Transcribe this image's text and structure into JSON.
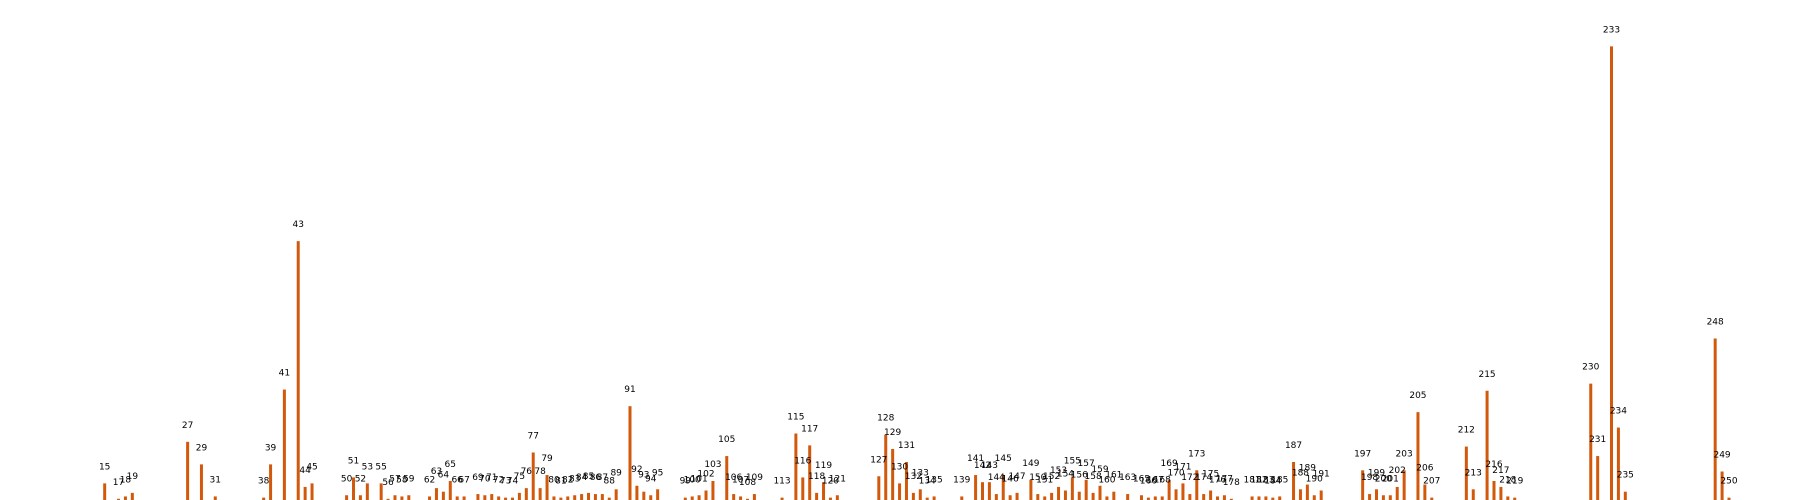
{
  "chart_data": {
    "type": "bar",
    "title": "",
    "xlabel": "",
    "ylabel": "",
    "bar_color": "#d2590c",
    "label_color": "#000000",
    "background": "#ffffff",
    "x_range": [
      0,
      250
    ],
    "ylim": [
      0,
      2000
    ],
    "bars": [
      {
        "x": 15,
        "y": 70
      },
      {
        "x": 17,
        "y": 5
      },
      {
        "x": 18,
        "y": 15
      },
      {
        "x": 19,
        "y": 30
      },
      {
        "x": 27,
        "y": 245
      },
      {
        "x": 29,
        "y": 150
      },
      {
        "x": 31,
        "y": 15
      },
      {
        "x": 38,
        "y": 10
      },
      {
        "x": 39,
        "y": 150
      },
      {
        "x": 41,
        "y": 465
      },
      {
        "x": 43,
        "y": 1090
      },
      {
        "x": 44,
        "y": 55
      },
      {
        "x": 45,
        "y": 70
      },
      {
        "x": 50,
        "y": 20
      },
      {
        "x": 51,
        "y": 95
      },
      {
        "x": 52,
        "y": 20
      },
      {
        "x": 53,
        "y": 70
      },
      {
        "x": 55,
        "y": 70
      },
      {
        "x": 56,
        "y": 5
      },
      {
        "x": 57,
        "y": 20
      },
      {
        "x": 58,
        "y": 15
      },
      {
        "x": 59,
        "y": 20
      },
      {
        "x": 62,
        "y": 15
      },
      {
        "x": 63,
        "y": 50
      },
      {
        "x": 64,
        "y": 35
      },
      {
        "x": 65,
        "y": 80
      },
      {
        "x": 66,
        "y": 15
      },
      {
        "x": 67,
        "y": 15
      },
      {
        "x": 69,
        "y": 25
      },
      {
        "x": 70,
        "y": 20
      },
      {
        "x": 71,
        "y": 25
      },
      {
        "x": 72,
        "y": 15
      },
      {
        "x": 73,
        "y": 10
      },
      {
        "x": 74,
        "y": 10
      },
      {
        "x": 75,
        "y": 30
      },
      {
        "x": 76,
        "y": 50
      },
      {
        "x": 77,
        "y": 200
      },
      {
        "x": 78,
        "y": 50
      },
      {
        "x": 79,
        "y": 105
      },
      {
        "x": 80,
        "y": 15
      },
      {
        "x": 81,
        "y": 10
      },
      {
        "x": 82,
        "y": 15
      },
      {
        "x": 83,
        "y": 20
      },
      {
        "x": 84,
        "y": 25
      },
      {
        "x": 85,
        "y": 30
      },
      {
        "x": 86,
        "y": 25
      },
      {
        "x": 87,
        "y": 25
      },
      {
        "x": 88,
        "y": 10
      },
      {
        "x": 89,
        "y": 45
      },
      {
        "x": 91,
        "y": 395
      },
      {
        "x": 92,
        "y": 60
      },
      {
        "x": 93,
        "y": 35
      },
      {
        "x": 94,
        "y": 20
      },
      {
        "x": 95,
        "y": 45
      },
      {
        "x": 99,
        "y": 10
      },
      {
        "x": 100,
        "y": 15
      },
      {
        "x": 101,
        "y": 20
      },
      {
        "x": 102,
        "y": 40
      },
      {
        "x": 103,
        "y": 80
      },
      {
        "x": 105,
        "y": 185
      },
      {
        "x": 106,
        "y": 25
      },
      {
        "x": 107,
        "y": 15
      },
      {
        "x": 108,
        "y": 5
      },
      {
        "x": 109,
        "y": 25
      },
      {
        "x": 113,
        "y": 10
      },
      {
        "x": 115,
        "y": 280
      },
      {
        "x": 116,
        "y": 95
      },
      {
        "x": 117,
        "y": 230
      },
      {
        "x": 118,
        "y": 30
      },
      {
        "x": 119,
        "y": 75
      },
      {
        "x": 120,
        "y": 10
      },
      {
        "x": 121,
        "y": 20
      },
      {
        "x": 127,
        "y": 100
      },
      {
        "x": 128,
        "y": 275
      },
      {
        "x": 129,
        "y": 215
      },
      {
        "x": 130,
        "y": 70
      },
      {
        "x": 131,
        "y": 160
      },
      {
        "x": 132,
        "y": 30
      },
      {
        "x": 133,
        "y": 45
      },
      {
        "x": 134,
        "y": 10
      },
      {
        "x": 135,
        "y": 15
      },
      {
        "x": 139,
        "y": 15
      },
      {
        "x": 141,
        "y": 105
      },
      {
        "x": 142,
        "y": 75
      },
      {
        "x": 143,
        "y": 75
      },
      {
        "x": 144,
        "y": 25
      },
      {
        "x": 145,
        "y": 105
      },
      {
        "x": 146,
        "y": 20
      },
      {
        "x": 147,
        "y": 30
      },
      {
        "x": 149,
        "y": 85
      },
      {
        "x": 150,
        "y": 25
      },
      {
        "x": 151,
        "y": 15
      },
      {
        "x": 152,
        "y": 30
      },
      {
        "x": 153,
        "y": 55
      },
      {
        "x": 154,
        "y": 40
      },
      {
        "x": 155,
        "y": 95
      },
      {
        "x": 156,
        "y": 35
      },
      {
        "x": 157,
        "y": 85
      },
      {
        "x": 158,
        "y": 30
      },
      {
        "x": 159,
        "y": 60
      },
      {
        "x": 160,
        "y": 15
      },
      {
        "x": 161,
        "y": 35
      },
      {
        "x": 163,
        "y": 25
      },
      {
        "x": 165,
        "y": 20
      },
      {
        "x": 166,
        "y": 10
      },
      {
        "x": 167,
        "y": 15
      },
      {
        "x": 168,
        "y": 15
      },
      {
        "x": 169,
        "y": 85
      },
      {
        "x": 170,
        "y": 45
      },
      {
        "x": 171,
        "y": 70
      },
      {
        "x": 172,
        "y": 25
      },
      {
        "x": 173,
        "y": 125
      },
      {
        "x": 174,
        "y": 25
      },
      {
        "x": 175,
        "y": 40
      },
      {
        "x": 176,
        "y": 15
      },
      {
        "x": 177,
        "y": 20
      },
      {
        "x": 178,
        "y": 5
      },
      {
        "x": 181,
        "y": 15
      },
      {
        "x": 182,
        "y": 15
      },
      {
        "x": 183,
        "y": 15
      },
      {
        "x": 184,
        "y": 10
      },
      {
        "x": 185,
        "y": 15
      },
      {
        "x": 187,
        "y": 160
      },
      {
        "x": 188,
        "y": 45
      },
      {
        "x": 189,
        "y": 65
      },
      {
        "x": 190,
        "y": 20
      },
      {
        "x": 191,
        "y": 40
      },
      {
        "x": 197,
        "y": 125
      },
      {
        "x": 198,
        "y": 25
      },
      {
        "x": 199,
        "y": 45
      },
      {
        "x": 200,
        "y": 20
      },
      {
        "x": 201,
        "y": 20
      },
      {
        "x": 202,
        "y": 55
      },
      {
        "x": 203,
        "y": 125
      },
      {
        "x": 205,
        "y": 370
      },
      {
        "x": 206,
        "y": 65
      },
      {
        "x": 207,
        "y": 10
      },
      {
        "x": 212,
        "y": 225
      },
      {
        "x": 213,
        "y": 45
      },
      {
        "x": 215,
        "y": 460
      },
      {
        "x": 216,
        "y": 80
      },
      {
        "x": 217,
        "y": 55
      },
      {
        "x": 218,
        "y": 15
      },
      {
        "x": 219,
        "y": 10
      },
      {
        "x": 230,
        "y": 490
      },
      {
        "x": 231,
        "y": 185
      },
      {
        "x": 233,
        "y": 1910
      },
      {
        "x": 234,
        "y": 305
      },
      {
        "x": 235,
        "y": 35
      },
      {
        "x": 248,
        "y": 680
      },
      {
        "x": 249,
        "y": 120
      },
      {
        "x": 250,
        "y": 10
      }
    ]
  }
}
